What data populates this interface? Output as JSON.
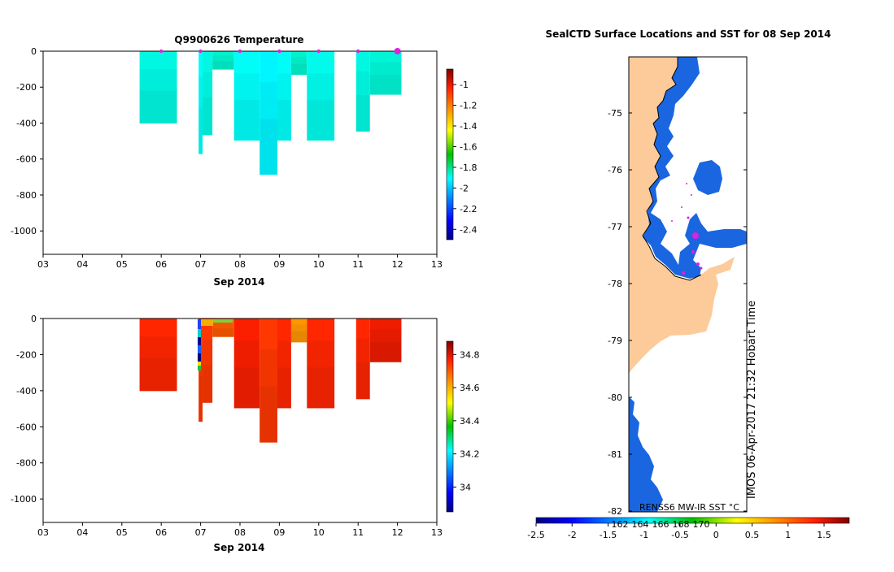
{
  "chart_data": [
    {
      "type": "heatmap",
      "title": "Q9900626  Temperature",
      "xlabel": "Sep 2014",
      "x_ticks": [
        "03",
        "04",
        "05",
        "06",
        "07",
        "08",
        "09",
        "10",
        "11",
        "12",
        "13"
      ],
      "y_ticks": [
        "0",
        "-200",
        "-400",
        "-600",
        "-800",
        "-1000"
      ],
      "xlim": [
        3,
        13
      ],
      "ylim": [
        -1130,
        0
      ],
      "colorbar": {
        "ticks": [
          "-1",
          "-1.2",
          "-1.4",
          "-1.6",
          "-1.8",
          "-2",
          "-2.2",
          "-2.4"
        ],
        "range": [
          -2.5,
          -0.85
        ]
      },
      "profiles": [
        {
          "t0": 5.45,
          "t1": 6.4,
          "bottom": -400,
          "value": -1.88
        },
        {
          "t0": 6.95,
          "t1": 7.05,
          "bottom": -570,
          "value": -1.9
        },
        {
          "t0": 7.05,
          "t1": 7.3,
          "bottom": -465,
          "value": -1.88
        },
        {
          "t0": 7.3,
          "t1": 7.85,
          "bottom": -100,
          "value": -1.86
        },
        {
          "t0": 7.85,
          "t1": 8.5,
          "bottom": -495,
          "value": -1.9
        },
        {
          "t0": 8.5,
          "t1": 8.95,
          "bottom": -685,
          "value": -1.92
        },
        {
          "t0": 8.95,
          "t1": 9.3,
          "bottom": -495,
          "value": -1.9
        },
        {
          "t0": 9.3,
          "t1": 9.7,
          "bottom": -130,
          "value": -1.86
        },
        {
          "t0": 9.7,
          "t1": 10.4,
          "bottom": -495,
          "value": -1.89
        },
        {
          "t0": 10.95,
          "t1": 11.3,
          "bottom": -445,
          "value": -1.88
        },
        {
          "t0": 11.3,
          "t1": 12.1,
          "bottom": -240,
          "value": -1.87
        }
      ],
      "markers_t": [
        6.0,
        7.0,
        8.0,
        9.0,
        10.0,
        11.0,
        12.0
      ]
    },
    {
      "type": "heatmap",
      "title": "",
      "xlabel": "Sep 2014",
      "x_ticks": [
        "03",
        "04",
        "05",
        "06",
        "07",
        "08",
        "09",
        "10",
        "11",
        "12",
        "13"
      ],
      "y_ticks": [
        "0",
        "-200",
        "-400",
        "-600",
        "-800",
        "-1000"
      ],
      "xlim": [
        3,
        13
      ],
      "ylim": [
        -1130,
        0
      ],
      "colorbar": {
        "ticks": [
          "34.8",
          "34.6",
          "34.4",
          "34.2",
          "34"
        ],
        "range": [
          33.85,
          34.88
        ]
      },
      "profiles": [
        {
          "t0": 5.45,
          "t1": 6.4,
          "bottom": -400,
          "value": 34.76
        },
        {
          "t0": 6.95,
          "t1": 7.05,
          "bottom": -570,
          "value": 34.74
        },
        {
          "t0": 7.05,
          "t1": 7.3,
          "bottom": -465,
          "value": 34.74
        },
        {
          "t0": 7.3,
          "t1": 7.85,
          "bottom": -100,
          "value": 34.7
        },
        {
          "t0": 7.85,
          "t1": 8.5,
          "bottom": -495,
          "value": 34.77
        },
        {
          "t0": 8.5,
          "t1": 8.95,
          "bottom": -685,
          "value": 34.74
        },
        {
          "t0": 8.95,
          "t1": 9.3,
          "bottom": -495,
          "value": 34.76
        },
        {
          "t0": 9.3,
          "t1": 9.7,
          "bottom": -130,
          "value": 34.63
        },
        {
          "t0": 9.7,
          "t1": 10.4,
          "bottom": -495,
          "value": 34.76
        },
        {
          "t0": 10.95,
          "t1": 11.3,
          "bottom": -445,
          "value": 34.76
        },
        {
          "t0": 11.3,
          "t1": 12.1,
          "bottom": -240,
          "value": 34.78
        }
      ]
    },
    {
      "type": "map",
      "title": "SealCTD Surface Locations and SST for 08 Sep 2014",
      "y_ticks": [
        "-75",
        "-76",
        "-77",
        "-78",
        "-79",
        "-80",
        "-81",
        "-82"
      ],
      "colorbar": {
        "label": "RENSS6 MW-IR SST °C",
        "ticks": [
          "-2.5",
          "-2",
          "-1.5",
          "-1",
          "-0.5",
          "0",
          "0.5",
          "1",
          "1.5"
        ],
        "inner_ticks": [
          "162",
          "164",
          "166",
          "168",
          "170"
        ],
        "range": [
          -2.5,
          1.85
        ]
      },
      "side_label": "IMOS 06-Apr-2017 21:32 Hobart Time"
    }
  ],
  "colors": {
    "land": "#FDCB9A",
    "sst_low": "#1565D8",
    "marker": "#E020E0"
  }
}
